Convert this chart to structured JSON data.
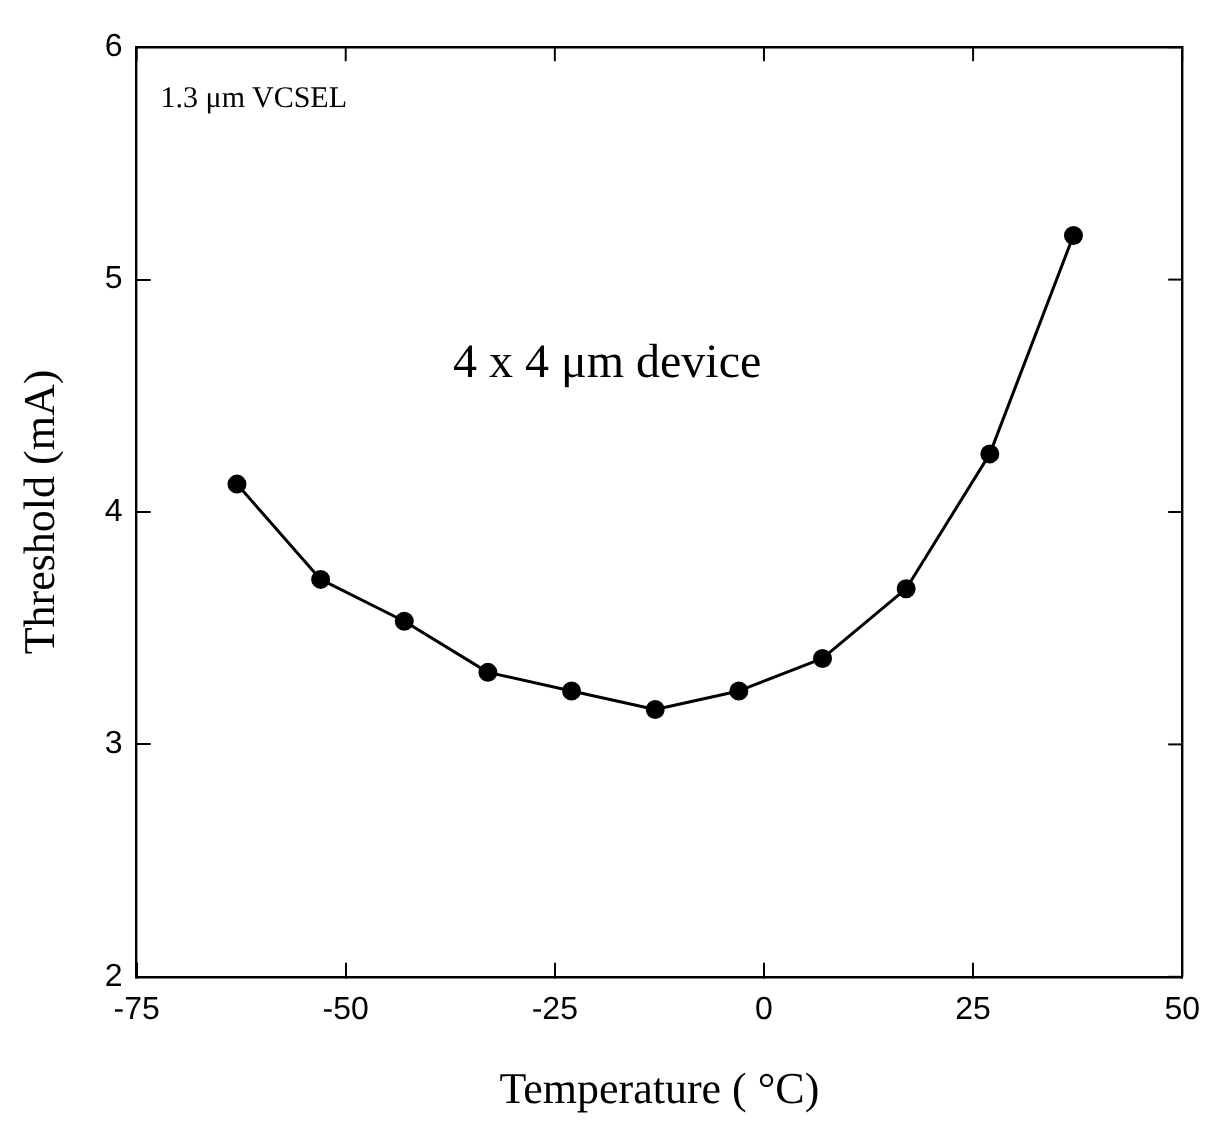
{
  "chart_data": {
    "type": "line",
    "xlabel": "Temperature ( °C)",
    "ylabel": "Threshold (mA)",
    "x": [
      -63,
      -53,
      -43,
      -33,
      -23,
      -13,
      -3,
      7,
      17,
      27,
      37
    ],
    "series": [
      {
        "color": "#000000",
        "values": [
          4.12,
          3.71,
          3.53,
          3.31,
          3.23,
          3.15,
          3.23,
          3.37,
          3.67,
          4.25,
          5.19
        ]
      }
    ],
    "xlim": [
      -75,
      50
    ],
    "xticks": [
      -75,
      -50,
      -25,
      0,
      25,
      50
    ],
    "ylim": [
      2,
      6
    ],
    "yticks": [
      2,
      3,
      4,
      5,
      6
    ],
    "marker": "circle",
    "line_style": "solid",
    "grid": false,
    "legend": false,
    "annotations": [
      "1.3 μm VCSEL",
      "4 x 4 μm device"
    ]
  }
}
